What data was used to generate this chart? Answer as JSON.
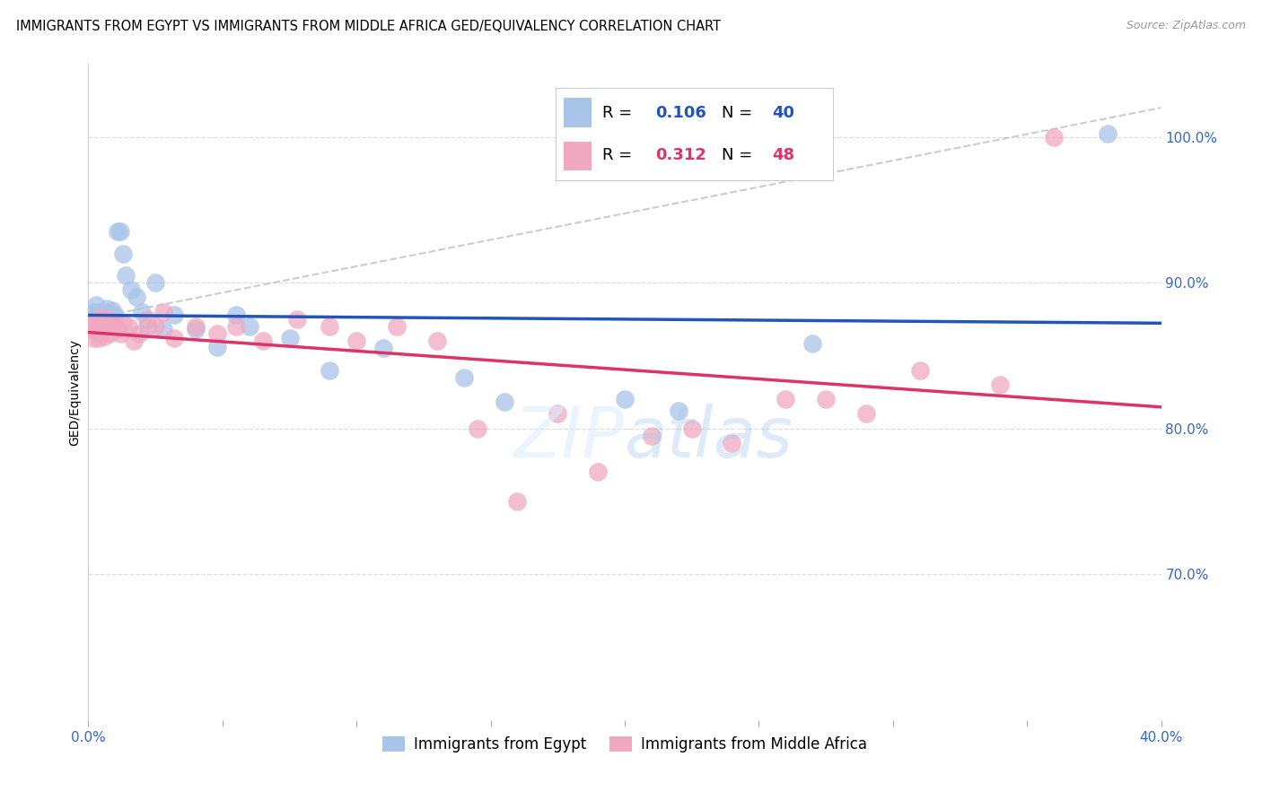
{
  "title": "IMMIGRANTS FROM EGYPT VS IMMIGRANTS FROM MIDDLE AFRICA GED/EQUIVALENCY CORRELATION CHART",
  "source": "Source: ZipAtlas.com",
  "ylabel": "GED/Equivalency",
  "xlim": [
    0.0,
    0.4
  ],
  "ylim": [
    0.6,
    1.05
  ],
  "yticks_right": [
    0.7,
    0.8,
    0.9,
    1.0
  ],
  "yticklabels_right": [
    "70.0%",
    "80.0%",
    "90.0%",
    "100.0%"
  ],
  "R_egypt": 0.106,
  "N_egypt": 40,
  "R_middle_africa": 0.312,
  "N_middle_africa": 48,
  "color_egypt": "#a8c4e8",
  "color_middle_africa": "#f0a8c0",
  "line_color_egypt": "#2255bb",
  "line_color_middle_africa": "#dd3366",
  "legend_label_egypt": "Immigrants from Egypt",
  "legend_label_middle_africa": "Immigrants from Middle Africa",
  "egypt_x": [
    0.001,
    0.002,
    0.002,
    0.003,
    0.003,
    0.004,
    0.004,
    0.005,
    0.005,
    0.006,
    0.006,
    0.007,
    0.007,
    0.008,
    0.009,
    0.01,
    0.011,
    0.012,
    0.013,
    0.014,
    0.016,
    0.018,
    0.02,
    0.022,
    0.025,
    0.028,
    0.032,
    0.04,
    0.048,
    0.055,
    0.06,
    0.075,
    0.09,
    0.11,
    0.14,
    0.155,
    0.2,
    0.22,
    0.27,
    0.38
  ],
  "egypt_y": [
    0.875,
    0.88,
    0.87,
    0.885,
    0.875,
    0.88,
    0.87,
    0.878,
    0.872,
    0.876,
    0.874,
    0.882,
    0.873,
    0.879,
    0.881,
    0.878,
    0.935,
    0.935,
    0.92,
    0.905,
    0.895,
    0.89,
    0.88,
    0.87,
    0.9,
    0.868,
    0.878,
    0.868,
    0.856,
    0.878,
    0.87,
    0.862,
    0.84,
    0.855,
    0.835,
    0.818,
    0.82,
    0.812,
    0.858,
    1.002
  ],
  "middle_africa_x": [
    0.001,
    0.002,
    0.002,
    0.003,
    0.003,
    0.004,
    0.004,
    0.005,
    0.005,
    0.006,
    0.006,
    0.007,
    0.008,
    0.008,
    0.009,
    0.01,
    0.011,
    0.012,
    0.013,
    0.015,
    0.017,
    0.019,
    0.022,
    0.025,
    0.028,
    0.032,
    0.04,
    0.048,
    0.055,
    0.065,
    0.078,
    0.09,
    0.1,
    0.115,
    0.13,
    0.145,
    0.16,
    0.175,
    0.19,
    0.21,
    0.225,
    0.24,
    0.26,
    0.275,
    0.29,
    0.31,
    0.34,
    0.36
  ],
  "middle_africa_y": [
    0.87,
    0.862,
    0.868,
    0.874,
    0.866,
    0.872,
    0.862,
    0.876,
    0.87,
    0.874,
    0.863,
    0.87,
    0.874,
    0.865,
    0.872,
    0.87,
    0.868,
    0.865,
    0.872,
    0.87,
    0.86,
    0.865,
    0.875,
    0.87,
    0.88,
    0.862,
    0.87,
    0.865,
    0.87,
    0.86,
    0.875,
    0.87,
    0.86,
    0.87,
    0.86,
    0.8,
    0.75,
    0.81,
    0.77,
    0.795,
    0.8,
    0.79,
    0.82,
    0.82,
    0.81,
    0.84,
    0.83,
    1.0
  ],
  "background_color": "#ffffff",
  "grid_color": "#dddddd"
}
